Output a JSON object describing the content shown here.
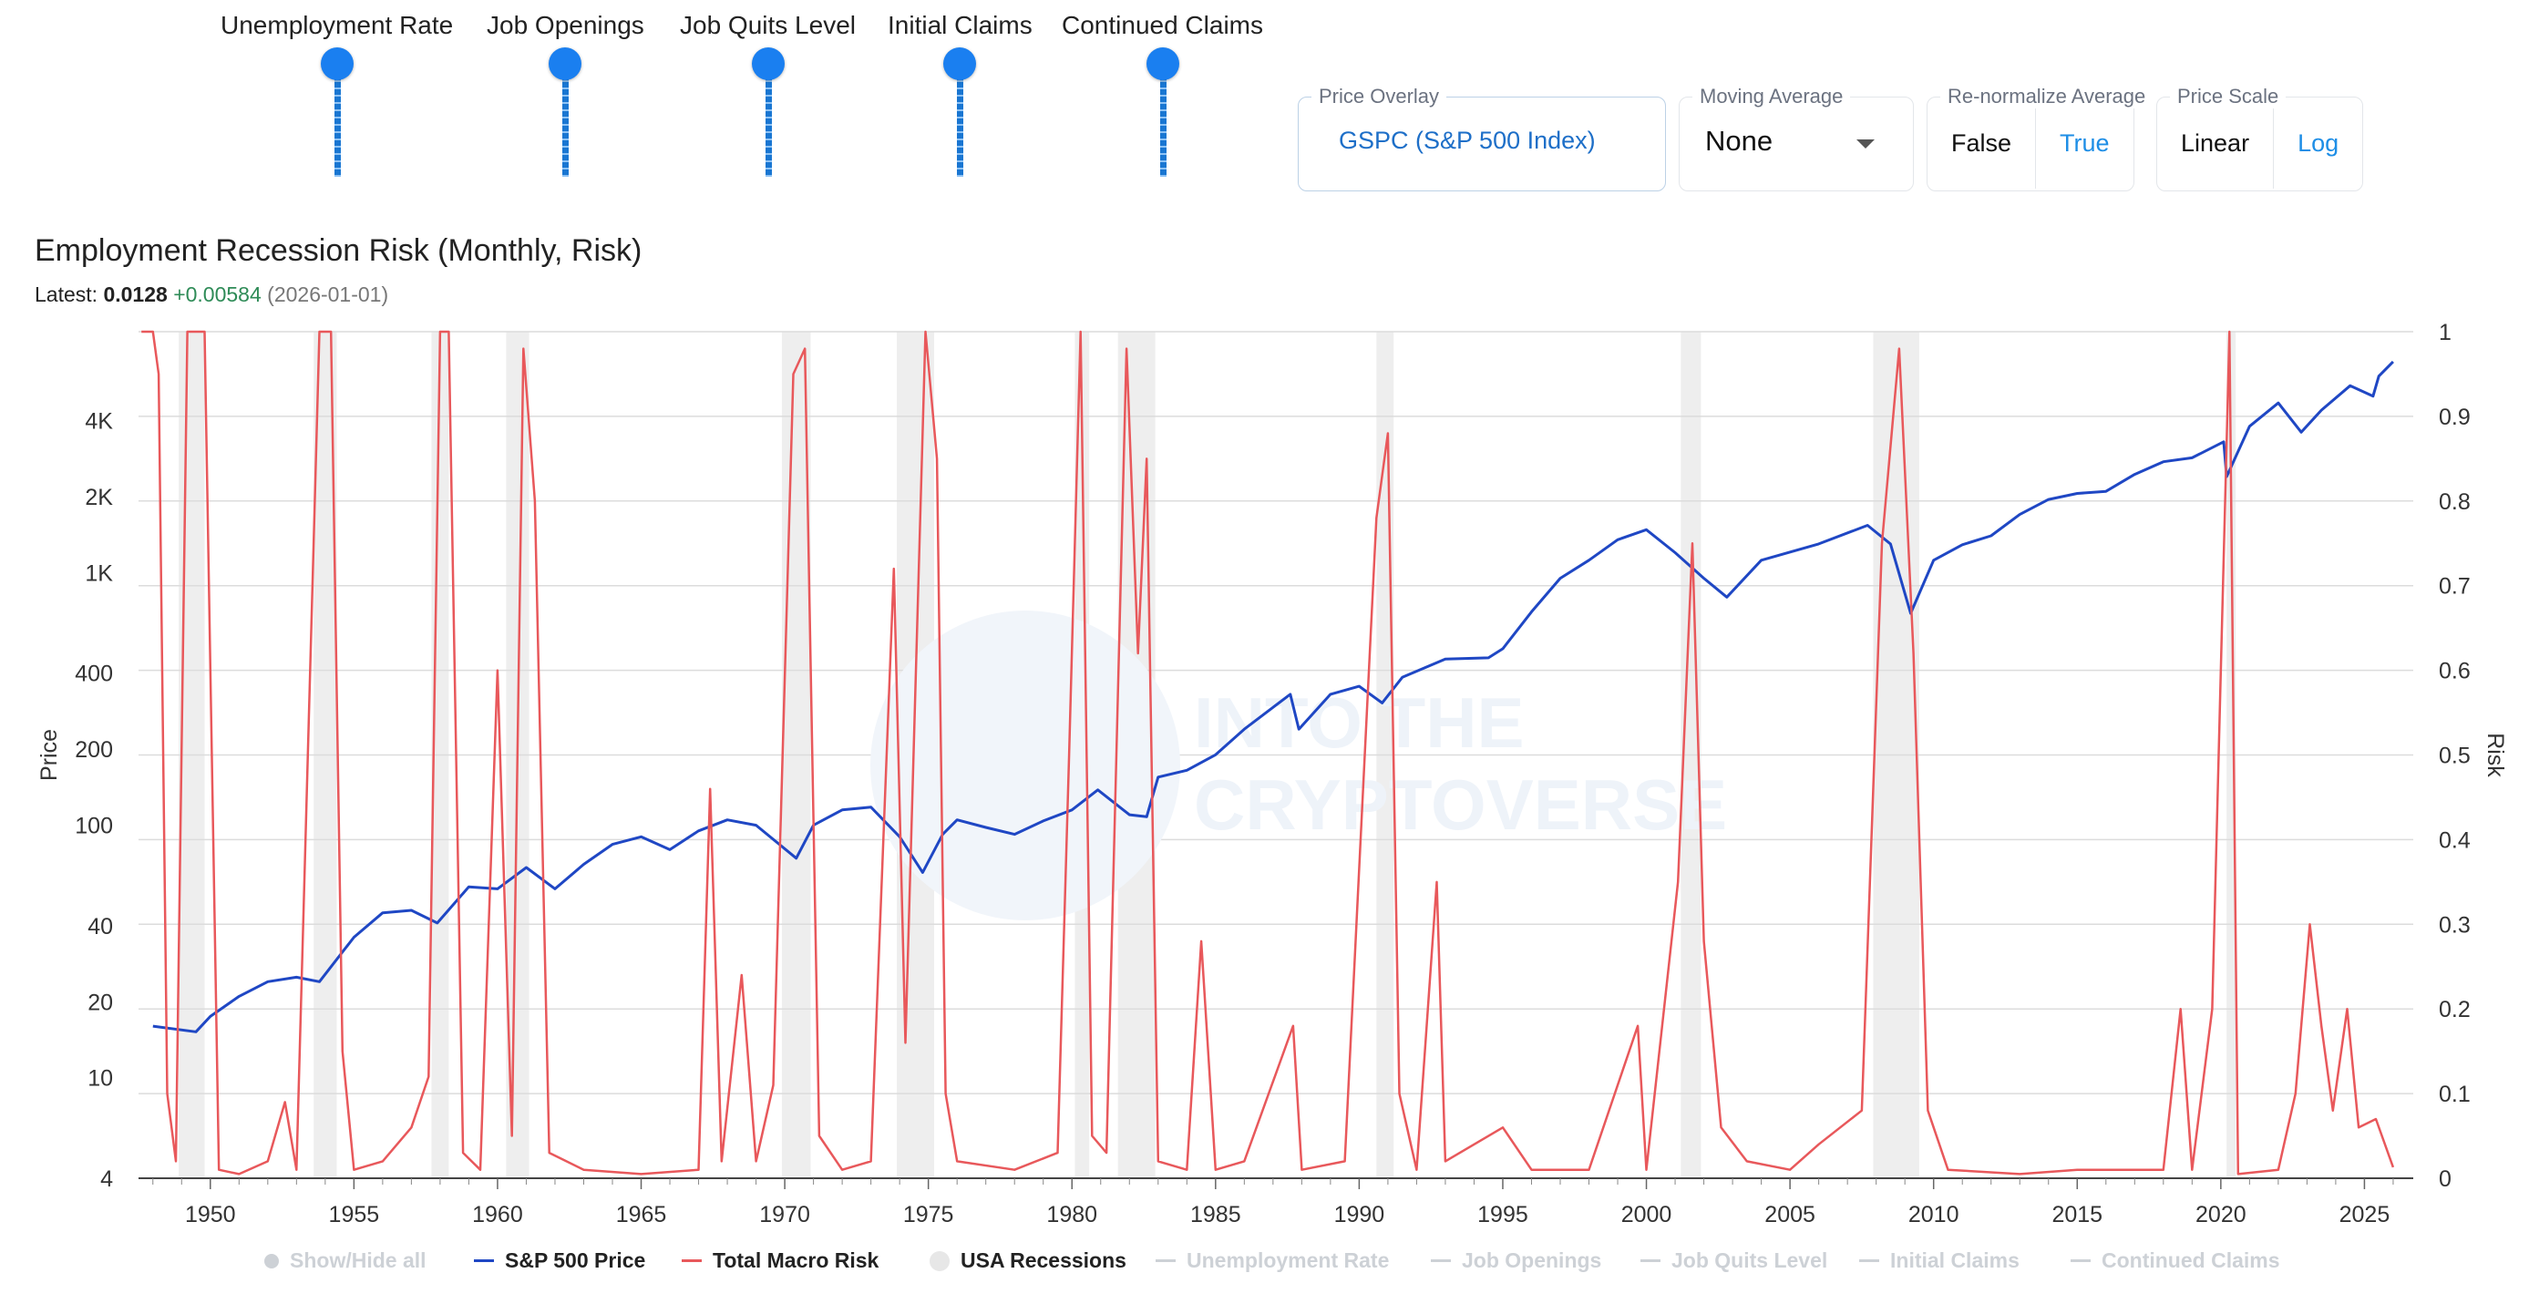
{
  "sliders": [
    {
      "label": "Unemployment Rate"
    },
    {
      "label": "Job Openings"
    },
    {
      "label": "Job Quits Level"
    },
    {
      "label": "Initial Claims"
    },
    {
      "label": "Continued Claims"
    }
  ],
  "controls": {
    "price_overlay": {
      "label": "Price Overlay",
      "value": "GSPC (S&P 500 Index)"
    },
    "moving_average": {
      "label": "Moving Average",
      "value": "None"
    },
    "renormalize": {
      "label": "Re-normalize Average",
      "options": [
        "False",
        "True"
      ],
      "selected": "False"
    },
    "price_scale": {
      "label": "Price Scale",
      "options": [
        "Linear",
        "Log"
      ],
      "selected": "Linear"
    }
  },
  "title": "Employment Recession Risk (Monthly, Risk)",
  "latest": {
    "label": "Latest:",
    "value": "0.0128",
    "change": "+0.00584",
    "date": "(2026-01-01)"
  },
  "legend": {
    "show_hide_all": "Show/Hide all",
    "items": [
      {
        "name": "S&P 500 Price",
        "active": true,
        "kind": "line",
        "color": "#1f47c4"
      },
      {
        "name": "Total Macro Risk",
        "active": true,
        "kind": "line",
        "color": "#e8585b"
      },
      {
        "name": "USA Recessions",
        "active": true,
        "kind": "band",
        "color": "#e7e7e7"
      },
      {
        "name": "Unemployment Rate",
        "active": false,
        "kind": "line",
        "color": "#cdd1d6"
      },
      {
        "name": "Job Openings",
        "active": false,
        "kind": "line",
        "color": "#cdd1d6"
      },
      {
        "name": "Job Quits Level",
        "active": false,
        "kind": "line",
        "color": "#cdd1d6"
      },
      {
        "name": "Initial Claims",
        "active": false,
        "kind": "line",
        "color": "#cdd1d6"
      },
      {
        "name": "Continued Claims",
        "active": false,
        "kind": "line",
        "color": "#cdd1d6"
      }
    ]
  },
  "watermark": [
    "INTO THE",
    "CRYPTOVERSE"
  ],
  "chart_data": {
    "type": "line",
    "x_axis": {
      "min": 1947.5,
      "max": 2026.7,
      "ticks": [
        1950,
        1955,
        1960,
        1965,
        1970,
        1975,
        1980,
        1985,
        1990,
        1995,
        2000,
        2005,
        2010,
        2015,
        2020,
        2025
      ]
    },
    "y_left": {
      "label": "Price",
      "scale": "log",
      "min": 4,
      "max": 9000,
      "ticks": [
        {
          "v": 4,
          "t": "4"
        },
        {
          "v": 10,
          "t": "10"
        },
        {
          "v": 20,
          "t": "20"
        },
        {
          "v": 40,
          "t": "40"
        },
        {
          "v": 100,
          "t": "100"
        },
        {
          "v": 200,
          "t": "200"
        },
        {
          "v": 400,
          "t": "400"
        },
        {
          "v": 1000,
          "t": "1K"
        },
        {
          "v": 2000,
          "t": "2K"
        },
        {
          "v": 4000,
          "t": "4K"
        }
      ]
    },
    "y_right": {
      "label": "Risk",
      "min": 0,
      "max": 1,
      "ticks": [
        {
          "v": 0,
          "t": "0"
        },
        {
          "v": 0.1,
          "t": "0.1"
        },
        {
          "v": 0.2,
          "t": "0.2"
        },
        {
          "v": 0.3,
          "t": "0.3"
        },
        {
          "v": 0.4,
          "t": "0.4"
        },
        {
          "v": 0.5,
          "t": "0.5"
        },
        {
          "v": 0.6,
          "t": "0.6"
        },
        {
          "v": 0.7,
          "t": "0.7"
        },
        {
          "v": 0.8,
          "t": "0.8"
        },
        {
          "v": 0.9,
          "t": "0.9"
        },
        {
          "v": 1,
          "t": "1"
        }
      ]
    },
    "recessions": [
      [
        1948.9,
        1949.8
      ],
      [
        1953.6,
        1954.4
      ],
      [
        1957.7,
        1958.3
      ],
      [
        1960.3,
        1961.1
      ],
      [
        1969.9,
        1970.9
      ],
      [
        1973.9,
        1975.2
      ],
      [
        1980.1,
        1980.6
      ],
      [
        1981.6,
        1982.9
      ],
      [
        1990.6,
        1991.2
      ],
      [
        2001.2,
        2001.9
      ],
      [
        2007.9,
        2009.5
      ],
      [
        2020.2,
        2020.4
      ]
    ],
    "series": [
      {
        "name": "S&P 500 Price",
        "axis": "left",
        "points": [
          [
            1948,
            16
          ],
          [
            1949.5,
            15.2
          ],
          [
            1950,
            17.5
          ],
          [
            1951,
            21
          ],
          [
            1952,
            24
          ],
          [
            1953,
            25
          ],
          [
            1953.8,
            24
          ],
          [
            1955,
            36
          ],
          [
            1956,
            45
          ],
          [
            1957,
            46
          ],
          [
            1957.9,
            41
          ],
          [
            1959,
            57
          ],
          [
            1960,
            56
          ],
          [
            1961,
            68
          ],
          [
            1962,
            56
          ],
          [
            1963,
            70
          ],
          [
            1964,
            84
          ],
          [
            1965,
            90
          ],
          [
            1966,
            80
          ],
          [
            1967,
            95
          ],
          [
            1968,
            105
          ],
          [
            1969,
            100
          ],
          [
            1970.4,
            74
          ],
          [
            1971,
            100
          ],
          [
            1972,
            115
          ],
          [
            1973,
            118
          ],
          [
            1974,
            90
          ],
          [
            1974.8,
            65
          ],
          [
            1975.5,
            92
          ],
          [
            1976,
            105
          ],
          [
            1977,
            98
          ],
          [
            1978,
            92
          ],
          [
            1979,
            104
          ],
          [
            1980,
            115
          ],
          [
            1980.9,
            138
          ],
          [
            1982,
            110
          ],
          [
            1982.6,
            108
          ],
          [
            1983,
            155
          ],
          [
            1984,
            165
          ],
          [
            1985,
            190
          ],
          [
            1986,
            240
          ],
          [
            1987.6,
            330
          ],
          [
            1987.9,
            240
          ],
          [
            1989,
            330
          ],
          [
            1990,
            355
          ],
          [
            1990.8,
            305
          ],
          [
            1991.5,
            385
          ],
          [
            1993,
            455
          ],
          [
            1994.5,
            460
          ],
          [
            1995,
            500
          ],
          [
            1996,
            700
          ],
          [
            1997,
            950
          ],
          [
            1998,
            1120
          ],
          [
            1999,
            1350
          ],
          [
            2000,
            1480
          ],
          [
            2001,
            1200
          ],
          [
            2002,
            950
          ],
          [
            2002.8,
            800
          ],
          [
            2004,
            1120
          ],
          [
            2006,
            1300
          ],
          [
            2007.7,
            1540
          ],
          [
            2008.5,
            1300
          ],
          [
            2009.2,
            690
          ],
          [
            2010,
            1120
          ],
          [
            2011,
            1290
          ],
          [
            2012,
            1400
          ],
          [
            2013,
            1700
          ],
          [
            2014,
            1950
          ],
          [
            2015,
            2060
          ],
          [
            2016,
            2100
          ],
          [
            2017,
            2450
          ],
          [
            2018,
            2750
          ],
          [
            2019,
            2850
          ],
          [
            2020.1,
            3300
          ],
          [
            2020.2,
            2400
          ],
          [
            2021,
            3800
          ],
          [
            2022,
            4700
          ],
          [
            2022.8,
            3600
          ],
          [
            2023.5,
            4400
          ],
          [
            2024.5,
            5500
          ],
          [
            2025.3,
            5000
          ],
          [
            2025.5,
            6000
          ],
          [
            2026,
            6850
          ]
        ]
      },
      {
        "name": "Total Macro Risk",
        "axis": "right",
        "points": [
          [
            1947.6,
            1
          ],
          [
            1948,
            1
          ],
          [
            1948.2,
            0.95
          ],
          [
            1948.5,
            0.1
          ],
          [
            1948.8,
            0.02
          ],
          [
            1949.2,
            1
          ],
          [
            1949.8,
            1
          ],
          [
            1950.3,
            0.01
          ],
          [
            1951,
            0.005
          ],
          [
            1952,
            0.02
          ],
          [
            1952.6,
            0.09
          ],
          [
            1953,
            0.01
          ],
          [
            1953.8,
            1
          ],
          [
            1954.2,
            1
          ],
          [
            1954.6,
            0.15
          ],
          [
            1955,
            0.01
          ],
          [
            1956,
            0.02
          ],
          [
            1957,
            0.06
          ],
          [
            1957.6,
            0.12
          ],
          [
            1958,
            1
          ],
          [
            1958.3,
            1
          ],
          [
            1958.8,
            0.03
          ],
          [
            1959.4,
            0.01
          ],
          [
            1960,
            0.6
          ],
          [
            1960.5,
            0.05
          ],
          [
            1960.9,
            0.98
          ],
          [
            1961.3,
            0.8
          ],
          [
            1961.8,
            0.03
          ],
          [
            1963,
            0.01
          ],
          [
            1965,
            0.005
          ],
          [
            1967,
            0.01
          ],
          [
            1967.4,
            0.46
          ],
          [
            1967.8,
            0.02
          ],
          [
            1968.5,
            0.24
          ],
          [
            1969,
            0.02
          ],
          [
            1969.6,
            0.11
          ],
          [
            1970.3,
            0.95
          ],
          [
            1970.7,
            0.98
          ],
          [
            1971.2,
            0.05
          ],
          [
            1972,
            0.01
          ],
          [
            1973,
            0.02
          ],
          [
            1973.8,
            0.72
          ],
          [
            1974.2,
            0.16
          ],
          [
            1974.9,
            1
          ],
          [
            1975.3,
            0.85
          ],
          [
            1975.6,
            0.1
          ],
          [
            1976,
            0.02
          ],
          [
            1978,
            0.01
          ],
          [
            1979.5,
            0.03
          ],
          [
            1979.9,
            0.5
          ],
          [
            1980.3,
            1
          ],
          [
            1980.7,
            0.05
          ],
          [
            1981.2,
            0.03
          ],
          [
            1981.9,
            0.98
          ],
          [
            1982.3,
            0.62
          ],
          [
            1982.6,
            0.85
          ],
          [
            1983,
            0.02
          ],
          [
            1984,
            0.01
          ],
          [
            1984.5,
            0.28
          ],
          [
            1985,
            0.01
          ],
          [
            1986,
            0.02
          ],
          [
            1987.7,
            0.18
          ],
          [
            1988,
            0.01
          ],
          [
            1989.5,
            0.02
          ],
          [
            1990.6,
            0.78
          ],
          [
            1991,
            0.88
          ],
          [
            1991.4,
            0.1
          ],
          [
            1992,
            0.01
          ],
          [
            1992.7,
            0.35
          ],
          [
            1993,
            0.02
          ],
          [
            1995,
            0.06
          ],
          [
            1996,
            0.01
          ],
          [
            1998,
            0.01
          ],
          [
            1999.7,
            0.18
          ],
          [
            2000,
            0.01
          ],
          [
            2001.1,
            0.35
          ],
          [
            2001.6,
            0.75
          ],
          [
            2002,
            0.28
          ],
          [
            2002.6,
            0.06
          ],
          [
            2003.5,
            0.02
          ],
          [
            2005,
            0.01
          ],
          [
            2006,
            0.04
          ],
          [
            2007.5,
            0.08
          ],
          [
            2008.2,
            0.75
          ],
          [
            2008.8,
            0.98
          ],
          [
            2009.3,
            0.62
          ],
          [
            2009.8,
            0.08
          ],
          [
            2010.5,
            0.01
          ],
          [
            2013,
            0.005
          ],
          [
            2015,
            0.01
          ],
          [
            2018,
            0.01
          ],
          [
            2018.6,
            0.2
          ],
          [
            2019,
            0.01
          ],
          [
            2019.7,
            0.2
          ],
          [
            2020.3,
            1
          ],
          [
            2020.6,
            0.005
          ],
          [
            2022,
            0.01
          ],
          [
            2022.6,
            0.1
          ],
          [
            2023.1,
            0.3
          ],
          [
            2023.5,
            0.18
          ],
          [
            2023.9,
            0.08
          ],
          [
            2024.4,
            0.2
          ],
          [
            2024.8,
            0.06
          ],
          [
            2025.4,
            0.07
          ],
          [
            2026,
            0.013
          ]
        ]
      }
    ]
  }
}
